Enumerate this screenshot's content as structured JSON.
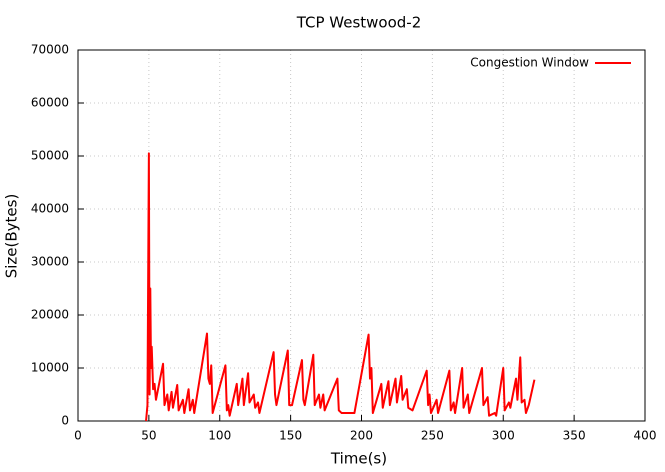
{
  "chart_data": {
    "type": "line",
    "title": "TCP Westwood-2",
    "x_label": "Time(s)",
    "y_label": "Size(Bytes)",
    "x": [
      48,
      49,
      50,
      50.5,
      51,
      51.5,
      52,
      53,
      54,
      55,
      60,
      61,
      63,
      64,
      66,
      67,
      70,
      71,
      74,
      75,
      78,
      79,
      81,
      82,
      91,
      92,
      93,
      94,
      95,
      104,
      105,
      106,
      107,
      112,
      113,
      116,
      117,
      120,
      121,
      124,
      125,
      127,
      128,
      138,
      139,
      140,
      148,
      149,
      151,
      158,
      159,
      160,
      166,
      167,
      170,
      171,
      173,
      174,
      183,
      184,
      186,
      195,
      205,
      206,
      207,
      208,
      214,
      215,
      219,
      220,
      224,
      225,
      228,
      229,
      232,
      233,
      236,
      246,
      247,
      248,
      249,
      253,
      254,
      262,
      263,
      265,
      266,
      271,
      272,
      275,
      276,
      285,
      286,
      289,
      290,
      294,
      295,
      300,
      301,
      304,
      305,
      309,
      310,
      312,
      313,
      315,
      316,
      318,
      322
    ],
    "series": [
      {
        "name": "Congestion Window",
        "color": "#ff0000",
        "values": [
          0,
          3000,
          50500,
          5000,
          25000,
          10000,
          14000,
          6000,
          7000,
          4000,
          10800,
          3000,
          5000,
          2000,
          5500,
          2500,
          6800,
          2000,
          4000,
          1500,
          6000,
          2000,
          4000,
          1500,
          16500,
          8000,
          7000,
          10500,
          1500,
          10500,
          2000,
          3000,
          1000,
          7000,
          3000,
          8000,
          3000,
          9000,
          3500,
          5000,
          2500,
          3500,
          1500,
          13000,
          5000,
          3000,
          13300,
          3000,
          3000,
          11500,
          4000,
          3000,
          12500,
          3000,
          5000,
          2500,
          5000,
          2000,
          8000,
          2000,
          1500,
          1500,
          16300,
          8000,
          10000,
          1500,
          7000,
          2500,
          7500,
          3000,
          8000,
          3500,
          8500,
          4000,
          6000,
          2500,
          2000,
          9500,
          3000,
          5000,
          1500,
          4000,
          1500,
          9500,
          2000,
          3500,
          1500,
          10000,
          2500,
          5000,
          1500,
          10000,
          3000,
          4500,
          1000,
          1500,
          1000,
          10000,
          2000,
          3500,
          2500,
          8000,
          4000,
          12000,
          3500,
          4000,
          1500,
          3000,
          7800
        ]
      }
    ],
    "xlim": [
      0,
      400
    ],
    "xticks": [
      0,
      50,
      100,
      150,
      200,
      250,
      300,
      350,
      400
    ],
    "ylim": [
      0,
      70000
    ],
    "yticks": [
      0,
      10000,
      20000,
      30000,
      40000,
      50000,
      60000,
      70000
    ],
    "grid": true,
    "legend": "top-right"
  }
}
